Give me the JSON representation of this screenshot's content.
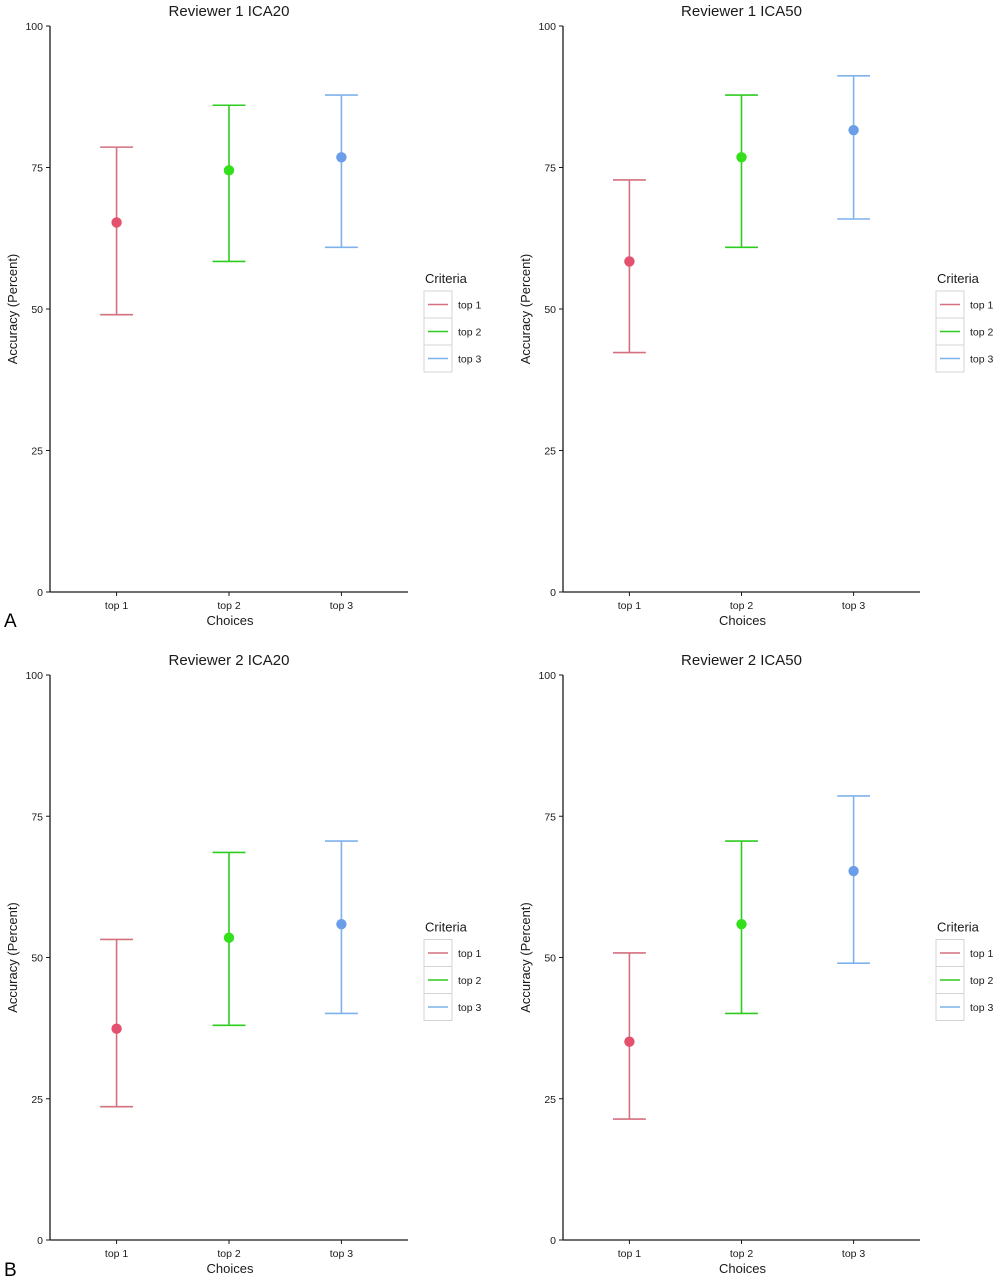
{
  "colors": {
    "series_lines": [
      "#d3717f",
      "#2ecc1f",
      "#7fb2ea"
    ],
    "series_points": [
      "#e4516e",
      "#33e01b",
      "#6a9ee8"
    ],
    "axis": "#1a1a1a"
  },
  "panel_labels": [
    "A",
    "B"
  ],
  "chart_data": [
    {
      "type": "scatter",
      "title": "Reviewer 1 ICA20",
      "xlabel": "Choices",
      "ylabel": "Accuracy (Percent)",
      "categories": [
        "top 1",
        "top 2",
        "top 3"
      ],
      "ylim": [
        0,
        100
      ],
      "yticks": [
        0,
        25,
        50,
        75,
        100
      ],
      "legend": {
        "title": "Criteria",
        "placement": "right",
        "entries": [
          "top 1",
          "top 2",
          "top 3"
        ]
      },
      "grid": false,
      "series": [
        {
          "values": [
            65.3,
            74.5,
            76.8
          ],
          "lower": [
            49.0,
            58.4,
            60.9
          ],
          "upper": [
            78.6,
            86.0,
            87.8
          ]
        }
      ]
    },
    {
      "type": "scatter",
      "title": "Reviewer 1 ICA50",
      "xlabel": "Choices",
      "ylabel": "Accuracy (Percent)",
      "categories": [
        "top 1",
        "top 2",
        "top 3"
      ],
      "ylim": [
        0,
        100
      ],
      "yticks": [
        0,
        25,
        50,
        75,
        100
      ],
      "legend": {
        "title": "Criteria",
        "placement": "right",
        "entries": [
          "top 1",
          "top 2",
          "top 3"
        ]
      },
      "grid": false,
      "series": [
        {
          "values": [
            58.4,
            76.8,
            81.6
          ],
          "lower": [
            42.3,
            60.9,
            65.9
          ],
          "upper": [
            72.8,
            87.8,
            91.2
          ]
        }
      ]
    },
    {
      "type": "scatter",
      "title": "Reviewer 2 ICA20",
      "xlabel": "Choices",
      "ylabel": "Accuracy (Percent)",
      "categories": [
        "top 1",
        "top 2",
        "top 3"
      ],
      "ylim": [
        0,
        100
      ],
      "yticks": [
        0,
        25,
        50,
        75,
        100
      ],
      "legend": {
        "title": "Criteria",
        "placement": "right",
        "entries": [
          "top 1",
          "top 2",
          "top 3"
        ]
      },
      "grid": false,
      "series": [
        {
          "values": [
            37.4,
            53.5,
            55.9
          ],
          "lower": [
            23.6,
            38.0,
            40.1
          ],
          "upper": [
            53.2,
            68.6,
            70.6
          ]
        }
      ]
    },
    {
      "type": "scatter",
      "title": "Reviewer 2 ICA50",
      "xlabel": "Choices",
      "ylabel": "Accuracy (Percent)",
      "categories": [
        "top 1",
        "top 2",
        "top 3"
      ],
      "ylim": [
        0,
        100
      ],
      "yticks": [
        0,
        25,
        50,
        75,
        100
      ],
      "legend": {
        "title": "Criteria",
        "placement": "right",
        "entries": [
          "top 1",
          "top 2",
          "top 3"
        ]
      },
      "grid": false,
      "series": [
        {
          "values": [
            35.1,
            55.9,
            65.3
          ],
          "lower": [
            21.4,
            40.1,
            49.0
          ],
          "upper": [
            50.8,
            70.6,
            78.6
          ]
        }
      ]
    }
  ]
}
